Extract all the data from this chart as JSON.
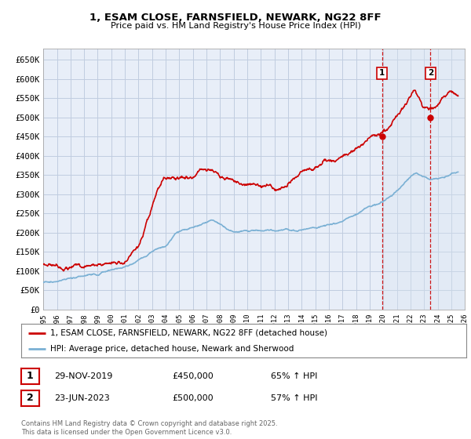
{
  "title": "1, ESAM CLOSE, FARNSFIELD, NEWARK, NG22 8FF",
  "subtitle": "Price paid vs. HM Land Registry's House Price Index (HPI)",
  "background_color": "#ffffff",
  "plot_bg_color": "#e8eef8",
  "grid_color": "#c0cce0",
  "red_color": "#cc0000",
  "blue_color": "#7ab0d4",
  "shade_color": "#d8e4f0",
  "ylim": [
    0,
    680000
  ],
  "xlim_start": 1995,
  "xlim_end": 2026,
  "yticks": [
    0,
    50000,
    100000,
    150000,
    200000,
    250000,
    300000,
    350000,
    400000,
    450000,
    500000,
    550000,
    600000,
    650000
  ],
  "ytick_labels": [
    "£0",
    "£50K",
    "£100K",
    "£150K",
    "£200K",
    "£250K",
    "£300K",
    "£350K",
    "£400K",
    "£450K",
    "£500K",
    "£550K",
    "£600K",
    "£650K"
  ],
  "xticks": [
    1995,
    1996,
    1997,
    1998,
    1999,
    2000,
    2001,
    2002,
    2003,
    2004,
    2005,
    2006,
    2007,
    2008,
    2009,
    2010,
    2011,
    2012,
    2013,
    2014,
    2015,
    2016,
    2017,
    2018,
    2019,
    2020,
    2021,
    2022,
    2023,
    2024,
    2025,
    2026
  ],
  "marker1_x": 2019.91,
  "marker1_y": 450000,
  "marker2_x": 2023.47,
  "marker2_y": 500000,
  "vline1_x": 2019.91,
  "vline2_x": 2023.47,
  "legend_label1": "1, ESAM CLOSE, FARNSFIELD, NEWARK, NG22 8FF (detached house)",
  "legend_label2": "HPI: Average price, detached house, Newark and Sherwood",
  "annotation1_date": "29-NOV-2019",
  "annotation1_price": "£450,000",
  "annotation1_hpi": "65% ↑ HPI",
  "annotation2_date": "23-JUN-2023",
  "annotation2_price": "£500,000",
  "annotation2_hpi": "57% ↑ HPI",
  "footer": "Contains HM Land Registry data © Crown copyright and database right 2025.\nThis data is licensed under the Open Government Licence v3.0."
}
